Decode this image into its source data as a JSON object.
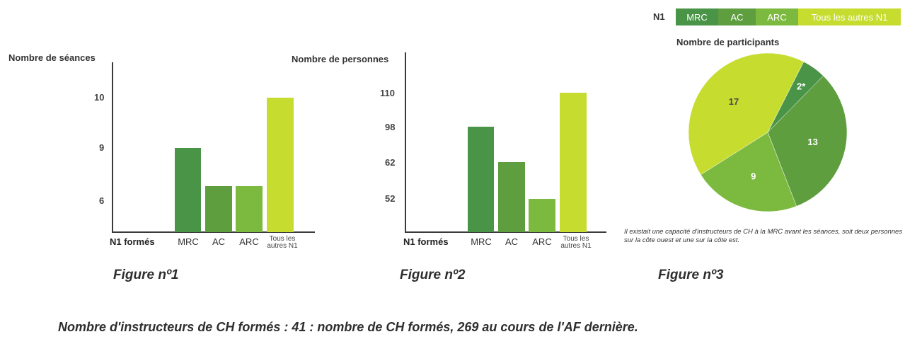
{
  "colors": {
    "MRC": "#4a9447",
    "AC": "#5e9e3e",
    "ARC": "#7cba3f",
    "Tous": "#c6dc2f"
  },
  "chart_data": [
    {
      "type": "bar",
      "ylabel": "Nombre de séances",
      "xlabel": "N1 formés",
      "categories": [
        "MRC",
        "AC",
        "ARC",
        "Tous les autres N1"
      ],
      "values": [
        9,
        6.85,
        6.85,
        10
      ],
      "ytick_labels": [
        "10",
        "9",
        "6"
      ],
      "caption": "Figure nº1"
    },
    {
      "type": "bar",
      "ylabel": "Nombre de personnes",
      "xlabel": "N1 formés",
      "categories": [
        "MRC",
        "AC",
        "ARC",
        "Tous les autres N1"
      ],
      "values": [
        98,
        62,
        52,
        110
      ],
      "ytick_labels": [
        "110",
        "98",
        "62",
        "52"
      ],
      "caption": "Figure nº2"
    },
    {
      "type": "pie",
      "title": "Nombre de participants",
      "legend_title": "N1",
      "legend": [
        "MRC",
        "AC",
        "ARC",
        "Tous les autres N1"
      ],
      "slices": [
        {
          "label": "2*",
          "value": 2,
          "series": "MRC"
        },
        {
          "label": "13",
          "value": 13,
          "series": "AC"
        },
        {
          "label": "9",
          "value": 9,
          "series": "ARC"
        },
        {
          "label": "17",
          "value": 17,
          "series": "Tous"
        }
      ],
      "note": "Il existait une capacité d'instructeurs de CH à la MRC avant les séances, soit deux personnes sur la côte ouest et une sur la côte est.",
      "caption": "Figure nº3"
    }
  ],
  "footer": "Nombre d'instructeurs de CH formés : 41 : nombre de CH formés, 269 au cours de l'AF dernière."
}
